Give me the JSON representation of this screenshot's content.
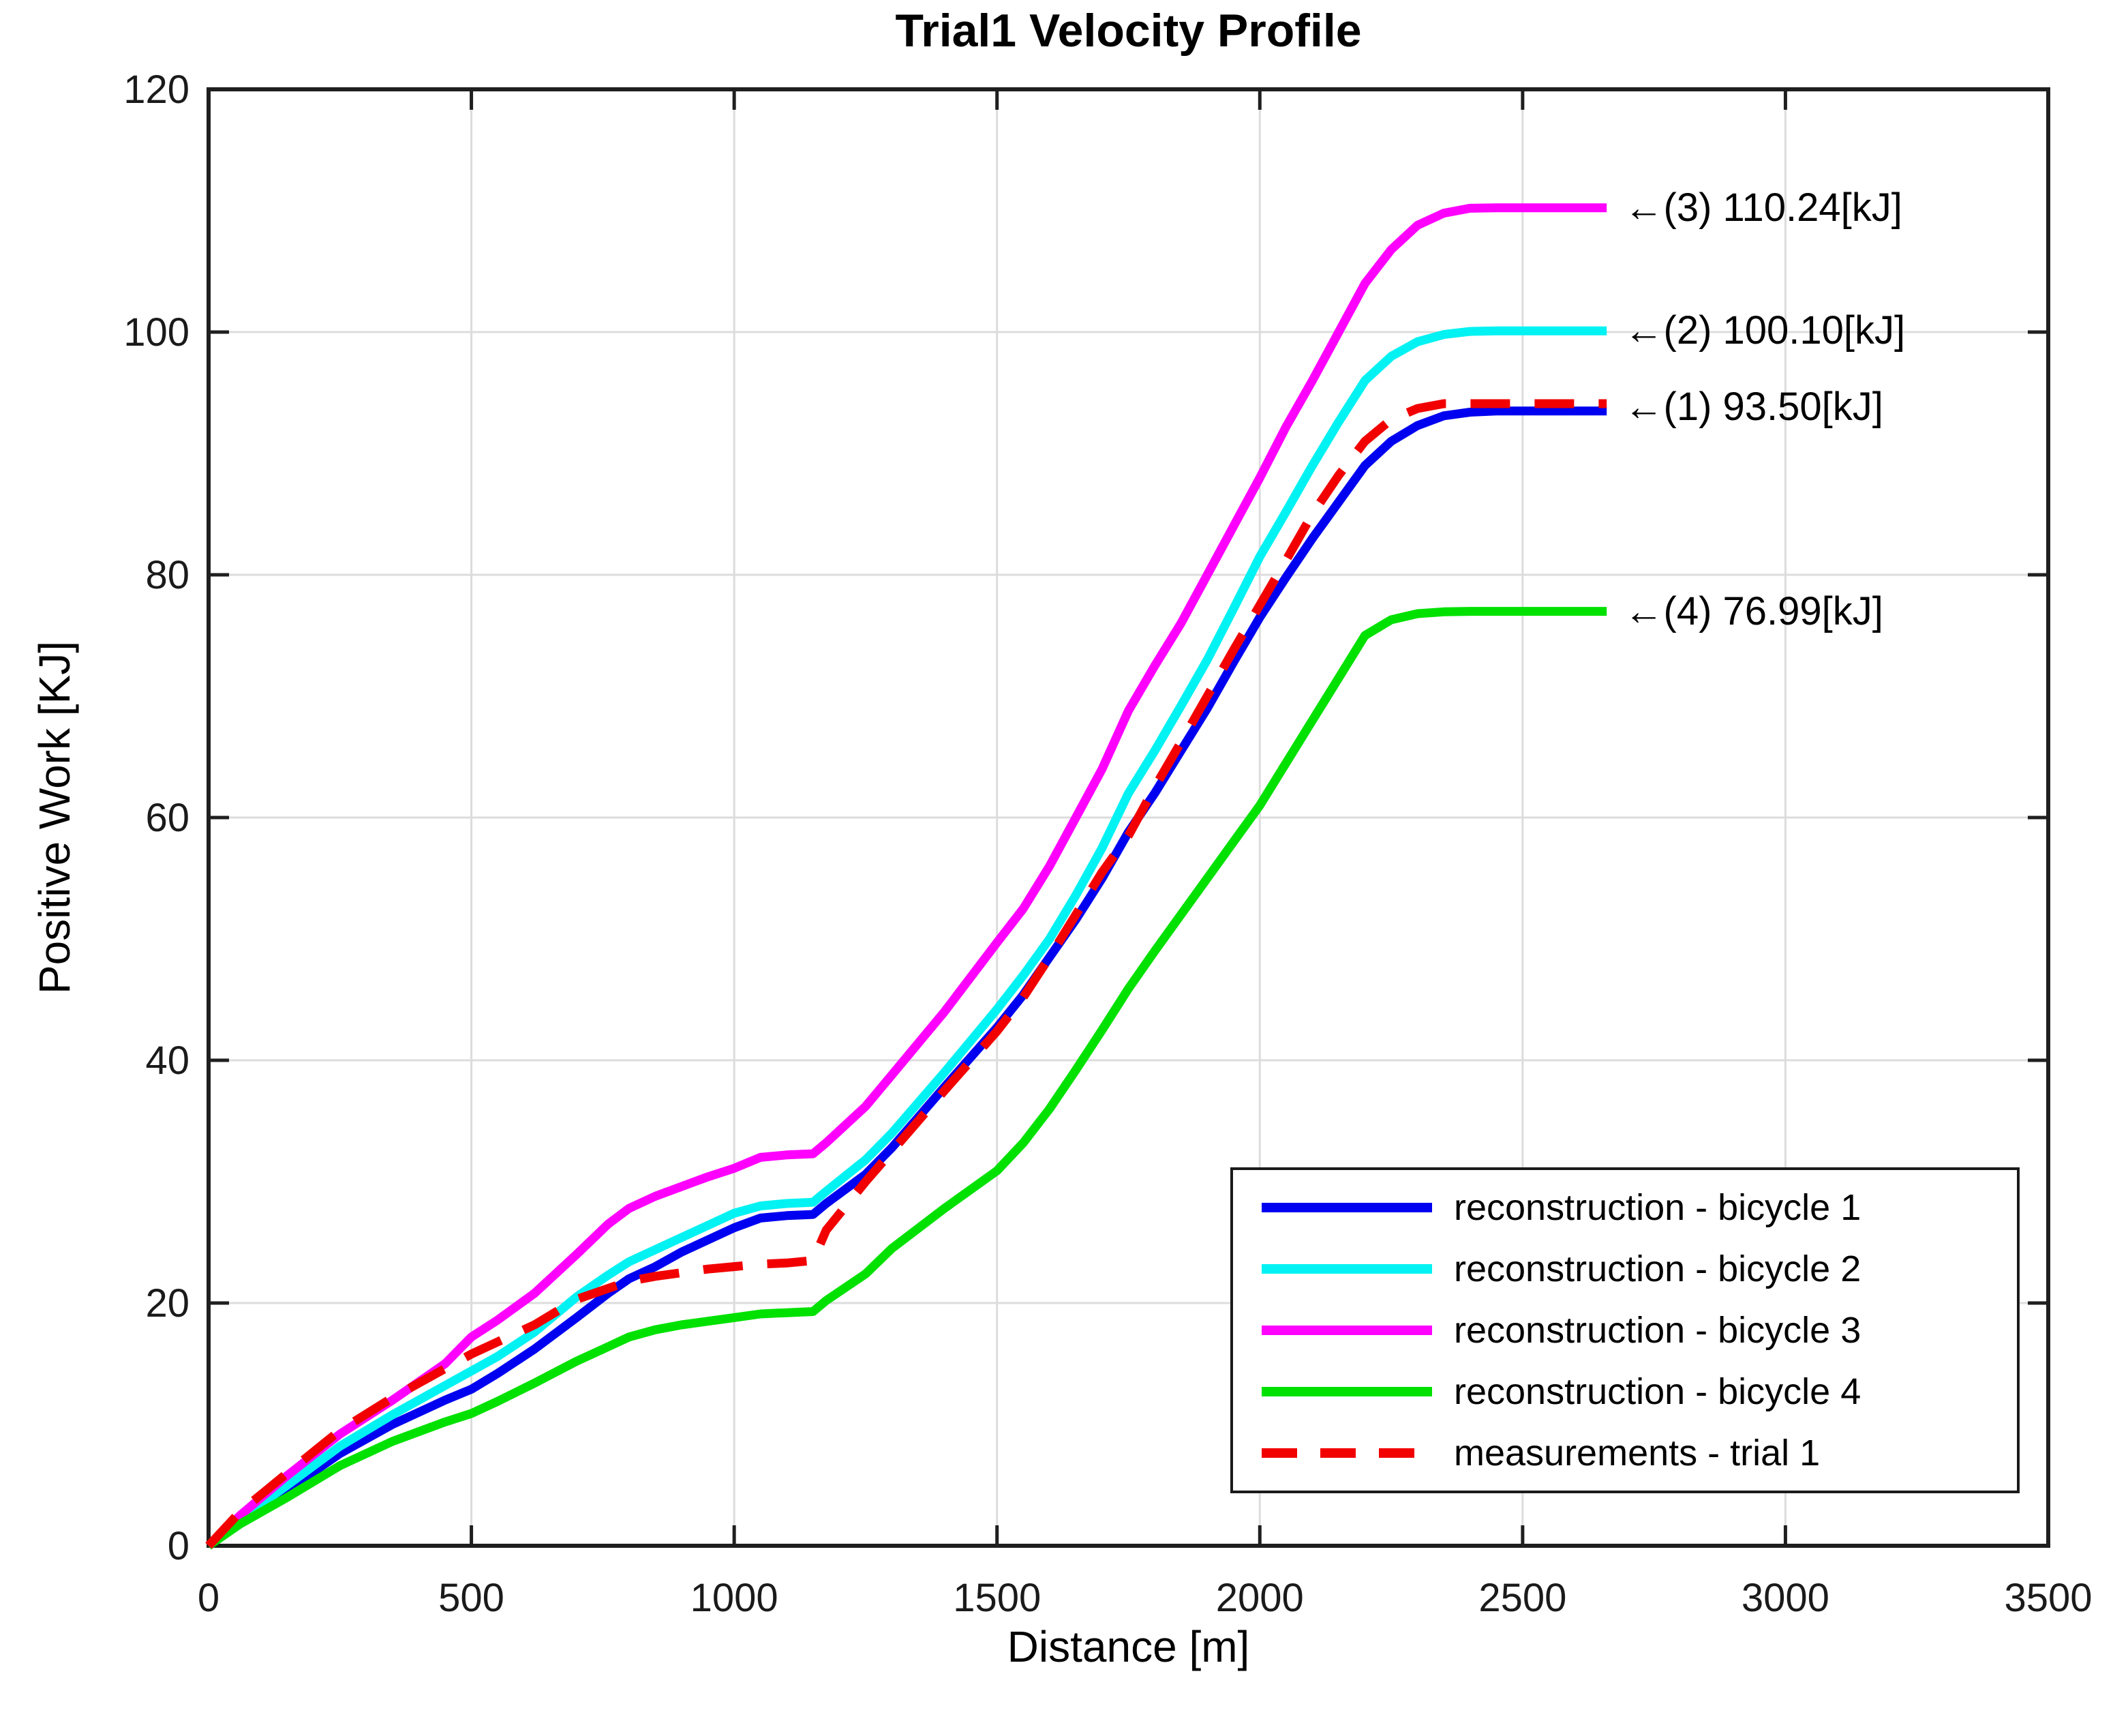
{
  "figure": {
    "title": "Trial1 Velocity Profile"
  },
  "chart_data": {
    "type": "line",
    "title": "Trial1 Velocity Profile",
    "xlabel": "Distance [m]",
    "ylabel": "Positive Work [KJ]",
    "xlim": [
      0,
      3500
    ],
    "ylim": [
      0,
      120
    ],
    "xticks": [
      0,
      500,
      1000,
      1500,
      2000,
      2500,
      3000,
      3500
    ],
    "yticks": [
      0,
      20,
      40,
      60,
      80,
      100,
      120
    ],
    "grid": true,
    "legend_position": "inside lower right",
    "grid_color": "#DCDCDC",
    "axis_color": "#1f1f1f",
    "series": [
      {
        "name": "reconstruction - bicycle 1",
        "color": "#0000F0",
        "dash": false,
        "final_value_kj": 93.5,
        "points": [
          [
            0,
            0
          ],
          [
            60,
            2.0
          ],
          [
            150,
            4.6
          ],
          [
            250,
            7.6
          ],
          [
            350,
            10.0
          ],
          [
            450,
            12.0
          ],
          [
            500,
            12.9
          ],
          [
            550,
            14.2
          ],
          [
            620,
            16.2
          ],
          [
            700,
            18.8
          ],
          [
            760,
            20.8
          ],
          [
            800,
            22.0
          ],
          [
            850,
            23.0
          ],
          [
            900,
            24.2
          ],
          [
            950,
            25.2
          ],
          [
            1000,
            26.2
          ],
          [
            1050,
            27.0
          ],
          [
            1100,
            27.2
          ],
          [
            1150,
            27.3
          ],
          [
            1175,
            28.2
          ],
          [
            1250,
            30.6
          ],
          [
            1300,
            32.8
          ],
          [
            1400,
            37.8
          ],
          [
            1500,
            42.7
          ],
          [
            1550,
            45.4
          ],
          [
            1600,
            48.5
          ],
          [
            1650,
            51.6
          ],
          [
            1700,
            55.0
          ],
          [
            1750,
            58.8
          ],
          [
            1800,
            62.0
          ],
          [
            1850,
            65.5
          ],
          [
            1900,
            69.0
          ],
          [
            1950,
            72.8
          ],
          [
            2000,
            76.5
          ],
          [
            2050,
            79.8
          ],
          [
            2100,
            83.0
          ],
          [
            2150,
            86.0
          ],
          [
            2200,
            89.0
          ],
          [
            2250,
            91.0
          ],
          [
            2300,
            92.3
          ],
          [
            2350,
            93.1
          ],
          [
            2400,
            93.4
          ],
          [
            2450,
            93.5
          ],
          [
            2660,
            93.5
          ]
        ]
      },
      {
        "name": "reconstruction - bicycle 2",
        "color": "#00F2F2",
        "dash": false,
        "final_value_kj": 100.1,
        "points": [
          [
            0,
            0
          ],
          [
            60,
            2.2
          ],
          [
            150,
            5.0
          ],
          [
            250,
            8.2
          ],
          [
            350,
            10.8
          ],
          [
            450,
            13.2
          ],
          [
            500,
            14.4
          ],
          [
            550,
            15.6
          ],
          [
            620,
            17.6
          ],
          [
            700,
            20.5
          ],
          [
            760,
            22.3
          ],
          [
            800,
            23.4
          ],
          [
            850,
            24.4
          ],
          [
            900,
            25.4
          ],
          [
            950,
            26.4
          ],
          [
            1000,
            27.4
          ],
          [
            1050,
            28.0
          ],
          [
            1100,
            28.2
          ],
          [
            1150,
            28.3
          ],
          [
            1175,
            29.2
          ],
          [
            1250,
            31.8
          ],
          [
            1300,
            34.0
          ],
          [
            1400,
            39.0
          ],
          [
            1500,
            44.2
          ],
          [
            1550,
            47.0
          ],
          [
            1600,
            50.0
          ],
          [
            1650,
            53.6
          ],
          [
            1700,
            57.5
          ],
          [
            1750,
            62.0
          ],
          [
            1800,
            65.5
          ],
          [
            1850,
            69.2
          ],
          [
            1900,
            73.0
          ],
          [
            1950,
            77.2
          ],
          [
            2000,
            81.5
          ],
          [
            2050,
            85.2
          ],
          [
            2100,
            89.0
          ],
          [
            2150,
            92.6
          ],
          [
            2200,
            96.0
          ],
          [
            2250,
            98.0
          ],
          [
            2300,
            99.2
          ],
          [
            2350,
            99.8
          ],
          [
            2400,
            100.05
          ],
          [
            2450,
            100.1
          ],
          [
            2660,
            100.1
          ]
        ]
      },
      {
        "name": "reconstruction - bicycle 3",
        "color": "#FF00FF",
        "dash": false,
        "final_value_kj": 110.24,
        "points": [
          [
            0,
            0
          ],
          [
            60,
            2.5
          ],
          [
            150,
            5.8
          ],
          [
            250,
            9.2
          ],
          [
            350,
            12.0
          ],
          [
            450,
            15.0
          ],
          [
            500,
            17.2
          ],
          [
            550,
            18.6
          ],
          [
            620,
            20.8
          ],
          [
            700,
            24.0
          ],
          [
            760,
            26.5
          ],
          [
            800,
            27.8
          ],
          [
            850,
            28.8
          ],
          [
            900,
            29.6
          ],
          [
            950,
            30.4
          ],
          [
            1000,
            31.1
          ],
          [
            1050,
            32.0
          ],
          [
            1100,
            32.2
          ],
          [
            1150,
            32.3
          ],
          [
            1175,
            33.2
          ],
          [
            1250,
            36.2
          ],
          [
            1300,
            38.8
          ],
          [
            1400,
            44.0
          ],
          [
            1500,
            49.7
          ],
          [
            1550,
            52.5
          ],
          [
            1600,
            56.0
          ],
          [
            1650,
            60.0
          ],
          [
            1700,
            64.0
          ],
          [
            1750,
            68.8
          ],
          [
            1800,
            72.5
          ],
          [
            1850,
            76.0
          ],
          [
            1900,
            80.0
          ],
          [
            1950,
            84.0
          ],
          [
            2000,
            88.0
          ],
          [
            2050,
            92.2
          ],
          [
            2100,
            96.0
          ],
          [
            2150,
            100.0
          ],
          [
            2200,
            104.0
          ],
          [
            2250,
            106.8
          ],
          [
            2300,
            108.8
          ],
          [
            2350,
            109.8
          ],
          [
            2400,
            110.2
          ],
          [
            2450,
            110.24
          ],
          [
            2660,
            110.24
          ]
        ]
      },
      {
        "name": "reconstruction - bicycle 4",
        "color": "#00E100",
        "dash": false,
        "final_value_kj": 76.99,
        "points": [
          [
            0,
            0
          ],
          [
            60,
            1.8
          ],
          [
            150,
            4.0
          ],
          [
            250,
            6.6
          ],
          [
            350,
            8.6
          ],
          [
            450,
            10.2
          ],
          [
            500,
            10.9
          ],
          [
            550,
            11.9
          ],
          [
            620,
            13.4
          ],
          [
            700,
            15.2
          ],
          [
            760,
            16.4
          ],
          [
            800,
            17.2
          ],
          [
            850,
            17.8
          ],
          [
            900,
            18.2
          ],
          [
            950,
            18.5
          ],
          [
            1000,
            18.8
          ],
          [
            1050,
            19.1
          ],
          [
            1100,
            19.2
          ],
          [
            1150,
            19.3
          ],
          [
            1175,
            20.2
          ],
          [
            1250,
            22.4
          ],
          [
            1300,
            24.5
          ],
          [
            1400,
            27.8
          ],
          [
            1500,
            30.9
          ],
          [
            1550,
            33.2
          ],
          [
            1600,
            36.0
          ],
          [
            1650,
            39.2
          ],
          [
            1700,
            42.5
          ],
          [
            1750,
            45.9
          ],
          [
            1800,
            49.0
          ],
          [
            1850,
            52.0
          ],
          [
            1900,
            55.0
          ],
          [
            1950,
            58.0
          ],
          [
            2000,
            61.0
          ],
          [
            2050,
            64.5
          ],
          [
            2100,
            68.0
          ],
          [
            2150,
            71.5
          ],
          [
            2200,
            75.0
          ],
          [
            2250,
            76.3
          ],
          [
            2300,
            76.8
          ],
          [
            2350,
            76.95
          ],
          [
            2400,
            76.99
          ],
          [
            2450,
            76.99
          ],
          [
            2660,
            76.99
          ]
        ]
      },
      {
        "name": "measurements - trial 1",
        "color": "#F20000",
        "dash": true,
        "final_value_kj": 94.1,
        "points": [
          [
            0,
            0
          ],
          [
            60,
            2.8
          ],
          [
            150,
            6.0
          ],
          [
            250,
            9.5
          ],
          [
            350,
            12.2
          ],
          [
            450,
            14.6
          ],
          [
            500,
            15.8
          ],
          [
            550,
            16.8
          ],
          [
            620,
            18.2
          ],
          [
            700,
            20.3
          ],
          [
            760,
            21.2
          ],
          [
            800,
            21.8
          ],
          [
            850,
            22.2
          ],
          [
            900,
            22.5
          ],
          [
            950,
            22.8
          ],
          [
            1000,
            23.0
          ],
          [
            1050,
            23.2
          ],
          [
            1100,
            23.3
          ],
          [
            1150,
            23.5
          ],
          [
            1175,
            26.0
          ],
          [
            1250,
            30.0
          ],
          [
            1300,
            32.5
          ],
          [
            1400,
            37.5
          ],
          [
            1500,
            42.4
          ],
          [
            1550,
            45.2
          ],
          [
            1600,
            48.5
          ],
          [
            1650,
            52.0
          ],
          [
            1700,
            55.5
          ],
          [
            1750,
            58.5
          ],
          [
            1800,
            62.5
          ],
          [
            1850,
            66.2
          ],
          [
            1900,
            70.0
          ],
          [
            1950,
            73.8
          ],
          [
            2000,
            77.5
          ],
          [
            2050,
            81.2
          ],
          [
            2100,
            85.0
          ],
          [
            2150,
            88.2
          ],
          [
            2200,
            91.0
          ],
          [
            2250,
            92.8
          ],
          [
            2300,
            93.7
          ],
          [
            2350,
            94.1
          ],
          [
            2400,
            94.1
          ],
          [
            2450,
            94.1
          ],
          [
            2660,
            94.1
          ]
        ]
      }
    ],
    "annotations": [
      {
        "text": "←(3) 110.24[kJ]",
        "x": 2685,
        "y": 110.24
      },
      {
        "text": "←(2) 100.10[kJ]",
        "x": 2685,
        "y": 100.1
      },
      {
        "text": "←(1) 93.50[kJ]",
        "x": 2685,
        "y": 93.8
      },
      {
        "text": "←(4) 76.99[kJ]",
        "x": 2685,
        "y": 76.99
      }
    ]
  }
}
